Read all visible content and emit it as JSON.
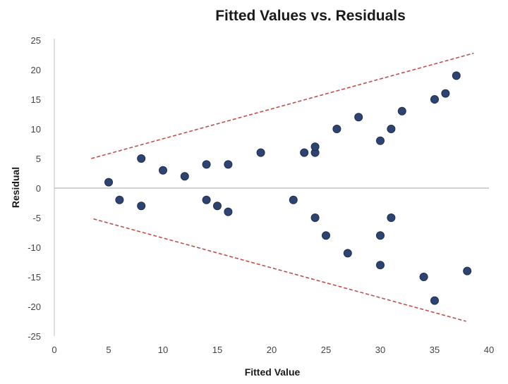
{
  "chart_data": {
    "type": "scatter",
    "title": "Fitted Values vs. Residuals",
    "xlabel": "Fitted Value",
    "ylabel": "Residual",
    "xlim": [
      0,
      40
    ],
    "ylim": [
      -25,
      25
    ],
    "xticks": [
      "0",
      "5",
      "10",
      "15",
      "20",
      "25",
      "30",
      "35",
      "40"
    ],
    "yticks": [
      "25",
      "20",
      "15",
      "10",
      "5",
      "0",
      "-5",
      "-10",
      "-15",
      "-20",
      "-25"
    ],
    "grid": false,
    "legend": "none",
    "marker_color": "#2e4470",
    "marker_edge_color": "#1f2f52",
    "zero_line_color": "#b8b8b8",
    "bound_line_color": "#c0504d",
    "points": [
      {
        "x": 5,
        "y": 1
      },
      {
        "x": 6,
        "y": -2
      },
      {
        "x": 8,
        "y": 5
      },
      {
        "x": 8,
        "y": -3
      },
      {
        "x": 10,
        "y": 3
      },
      {
        "x": 12,
        "y": 2
      },
      {
        "x": 14,
        "y": 4
      },
      {
        "x": 14,
        "y": -2
      },
      {
        "x": 15,
        "y": -3
      },
      {
        "x": 16,
        "y": 4
      },
      {
        "x": 16,
        "y": -4
      },
      {
        "x": 19,
        "y": 6
      },
      {
        "x": 22,
        "y": -2
      },
      {
        "x": 23,
        "y": 6
      },
      {
        "x": 24,
        "y": 6
      },
      {
        "x": 24,
        "y": 7
      },
      {
        "x": 24,
        "y": -5
      },
      {
        "x": 25,
        "y": -8
      },
      {
        "x": 26,
        "y": 10
      },
      {
        "x": 27,
        "y": -11
      },
      {
        "x": 28,
        "y": 12
      },
      {
        "x": 30,
        "y": 8
      },
      {
        "x": 30,
        "y": -8
      },
      {
        "x": 30,
        "y": -13
      },
      {
        "x": 31,
        "y": 10
      },
      {
        "x": 31,
        "y": -5
      },
      {
        "x": 32,
        "y": 13
      },
      {
        "x": 34,
        "y": -15
      },
      {
        "x": 35,
        "y": 15
      },
      {
        "x": 35,
        "y": -19
      },
      {
        "x": 36,
        "y": 16
      },
      {
        "x": 37,
        "y": 19
      },
      {
        "x": 38,
        "y": -14
      }
    ],
    "reference_lines": [
      {
        "style": "dashed",
        "x": [
          3.4,
          38.6
        ],
        "y": [
          5,
          22.8
        ]
      },
      {
        "style": "dashed",
        "x": [
          3.6,
          37.9
        ],
        "y": [
          -5.2,
          -22.5
        ]
      }
    ]
  }
}
